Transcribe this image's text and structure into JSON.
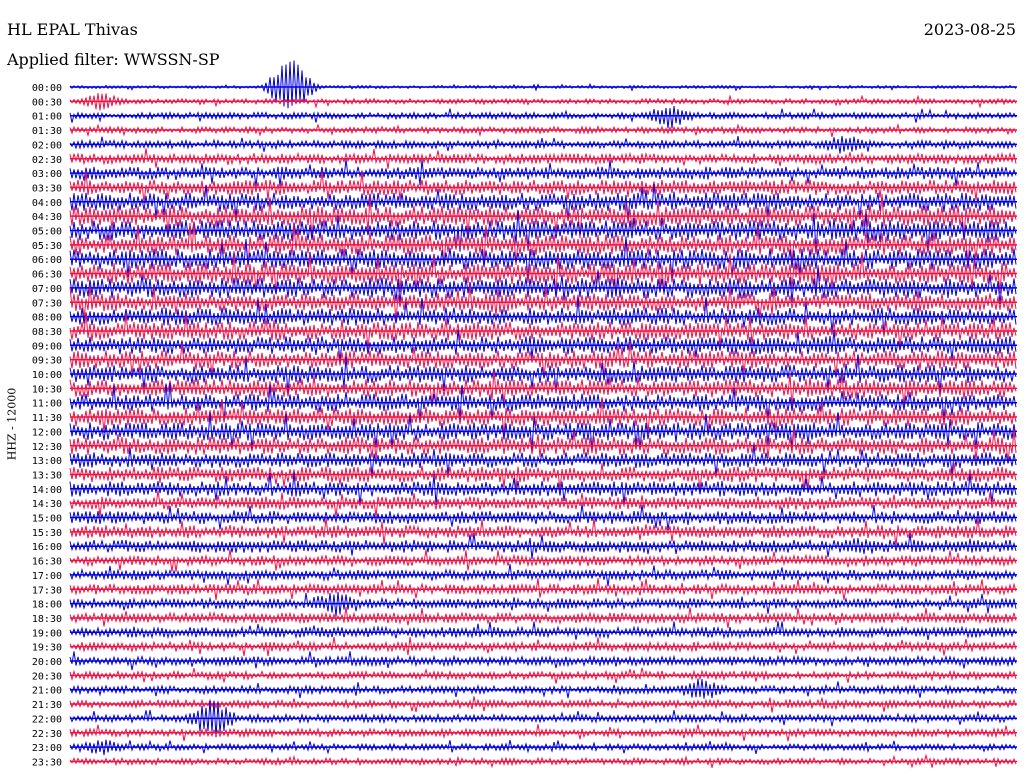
{
  "header": {
    "station": "HL EPAL Thivas",
    "filter": "Applied filter: WWSSN-SP",
    "date": "2023-08-25",
    "channel": "HHZ - 12000"
  },
  "chart_data": {
    "type": "line",
    "title": "HL EPAL Thivas",
    "subtitle": "Applied filter: WWSSN-SP",
    "date": "2023-08-25",
    "ylabel": "HHZ - 12000",
    "row_labels": [
      "00:00",
      "00:30",
      "01:00",
      "01:30",
      "02:00",
      "02:30",
      "03:00",
      "03:30",
      "04:00",
      "04:30",
      "05:00",
      "05:30",
      "06:00",
      "06:30",
      "07:00",
      "07:30",
      "08:00",
      "08:30",
      "09:00",
      "09:30",
      "10:00",
      "10:30",
      "11:00",
      "11:30",
      "12:00",
      "12:30",
      "13:00",
      "13:30",
      "14:00",
      "14:30",
      "15:00",
      "15:30",
      "16:00",
      "16:30",
      "17:00",
      "17:30",
      "18:00",
      "18:30",
      "19:00",
      "19:30",
      "20:00",
      "20:30",
      "21:00",
      "21:30",
      "22:00",
      "22:30",
      "23:00",
      "23:30"
    ],
    "series_colors": [
      "#0000dd",
      "#ee1144"
    ],
    "trace_amplitude": [
      1.2,
      2.0,
      2.5,
      2.5,
      3,
      4,
      5,
      6,
      7,
      8,
      8,
      8,
      8,
      8,
      8,
      7,
      7,
      7,
      7,
      7,
      7,
      7,
      7,
      7,
      7,
      7,
      6,
      6,
      6,
      5,
      5,
      5,
      5,
      4,
      4,
      4,
      4,
      4,
      4,
      3.5,
      3.5,
      3,
      3,
      3,
      3,
      3,
      2.5,
      2.5
    ],
    "events": [
      {
        "row": 0,
        "minute": 7.0,
        "amp": 30
      },
      {
        "row": 1,
        "minute": 1.0,
        "amp": 10
      },
      {
        "row": 2,
        "minute": 19.0,
        "amp": 14
      },
      {
        "row": 4,
        "minute": 24.5,
        "amp": 12
      },
      {
        "row": 15,
        "minute": 13.5,
        "amp": 14
      },
      {
        "row": 18,
        "minute": 24.0,
        "amp": 12
      },
      {
        "row": 32,
        "minute": 25.0,
        "amp": 10
      },
      {
        "row": 36,
        "minute": 8.4,
        "amp": 14
      },
      {
        "row": 42,
        "minute": 20.0,
        "amp": 13
      },
      {
        "row": 44,
        "minute": 4.5,
        "amp": 22
      },
      {
        "row": 46,
        "minute": 1.0,
        "amp": 9
      }
    ]
  }
}
